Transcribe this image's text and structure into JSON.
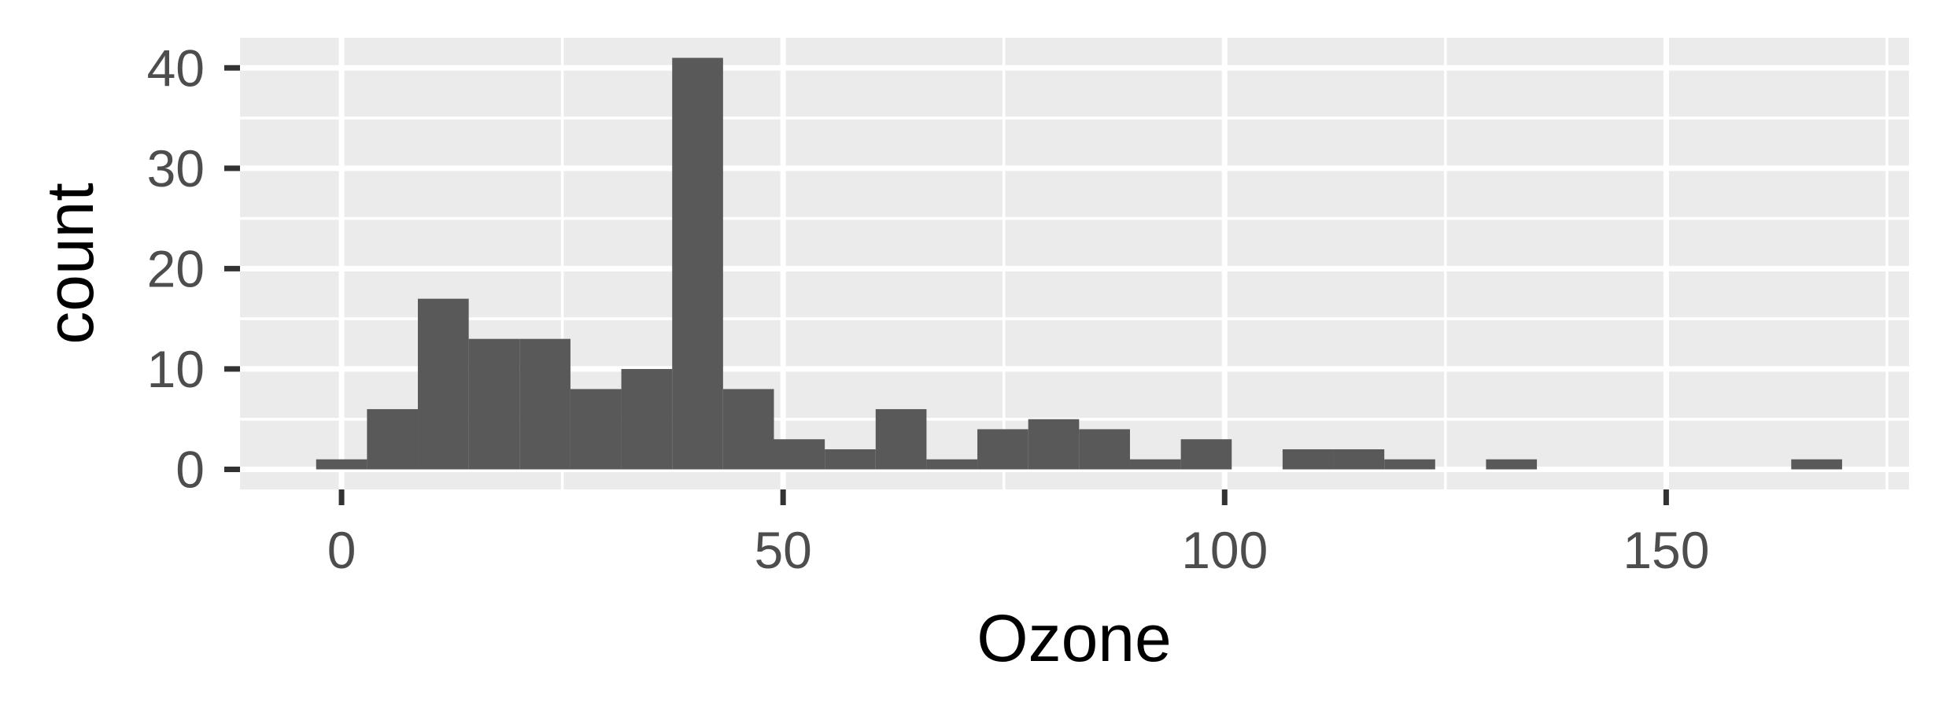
{
  "chart_data": {
    "type": "histogram",
    "title": "",
    "xlabel": "Ozone",
    "ylabel": "count",
    "xlim": [
      -11.5,
      177.5
    ],
    "ylim": [
      -2,
      43
    ],
    "x_ticks": [
      0,
      50,
      100,
      150
    ],
    "y_ticks": [
      0,
      10,
      20,
      30,
      40
    ],
    "x_tick_labels": [
      "0",
      "50",
      "100",
      "150"
    ],
    "y_tick_labels": [
      "0",
      "10",
      "20",
      "30",
      "40"
    ],
    "grid": true,
    "legend": "none",
    "bin_width": 5.76,
    "bins": [
      {
        "x0": -2.88,
        "x1": 2.88,
        "count": 1
      },
      {
        "x0": 2.88,
        "x1": 8.64,
        "count": 6
      },
      {
        "x0": 8.64,
        "x1": 14.4,
        "count": 17
      },
      {
        "x0": 14.4,
        "x1": 20.16,
        "count": 13
      },
      {
        "x0": 20.16,
        "x1": 25.92,
        "count": 13
      },
      {
        "x0": 25.92,
        "x1": 31.68,
        "count": 8
      },
      {
        "x0": 31.68,
        "x1": 37.44,
        "count": 10
      },
      {
        "x0": 37.44,
        "x1": 43.2,
        "count": 41
      },
      {
        "x0": 43.2,
        "x1": 48.96,
        "count": 8
      },
      {
        "x0": 48.96,
        "x1": 54.72,
        "count": 3
      },
      {
        "x0": 54.72,
        "x1": 60.48,
        "count": 2
      },
      {
        "x0": 60.48,
        "x1": 66.24,
        "count": 6
      },
      {
        "x0": 66.24,
        "x1": 72.0,
        "count": 1
      },
      {
        "x0": 72.0,
        "x1": 77.76,
        "count": 4
      },
      {
        "x0": 77.76,
        "x1": 83.52,
        "count": 5
      },
      {
        "x0": 83.52,
        "x1": 89.28,
        "count": 4
      },
      {
        "x0": 89.28,
        "x1": 95.04,
        "count": 1
      },
      {
        "x0": 95.04,
        "x1": 100.8,
        "count": 3
      },
      {
        "x0": 100.8,
        "x1": 106.56,
        "count": 0
      },
      {
        "x0": 106.56,
        "x1": 112.32,
        "count": 2
      },
      {
        "x0": 112.32,
        "x1": 118.08,
        "count": 2
      },
      {
        "x0": 118.08,
        "x1": 123.84,
        "count": 1
      },
      {
        "x0": 123.84,
        "x1": 129.6,
        "count": 0
      },
      {
        "x0": 129.6,
        "x1": 135.36,
        "count": 1
      },
      {
        "x0": 135.36,
        "x1": 141.12,
        "count": 0
      },
      {
        "x0": 141.12,
        "x1": 146.88,
        "count": 0
      },
      {
        "x0": 146.88,
        "x1": 152.64,
        "count": 0
      },
      {
        "x0": 152.64,
        "x1": 158.4,
        "count": 0
      },
      {
        "x0": 158.4,
        "x1": 164.16,
        "count": 0
      },
      {
        "x0": 164.16,
        "x1": 169.92,
        "count": 1
      }
    ],
    "colors": {
      "bar": "#595959",
      "panel": "#ebebeb",
      "grid": "#ffffff",
      "tick": "#333333",
      "tick_label": "#4d4d4d",
      "axis_title": "#000000"
    }
  }
}
